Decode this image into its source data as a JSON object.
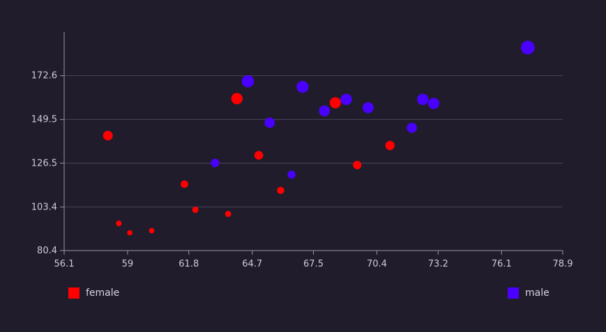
{
  "chart_data": {
    "type": "scatter",
    "title": "",
    "xlabel": "",
    "ylabel": "",
    "xlim": [
      56.1,
      78.9
    ],
    "ylim": [
      80.4,
      195.6
    ],
    "x_ticks": [
      "56.1",
      "59",
      "61.8",
      "64.7",
      "67.5",
      "70.4",
      "73.2",
      "76.1",
      "78.9"
    ],
    "y_ticks": [
      "80.4",
      "103.4",
      "126.5",
      "149.5",
      "172.6"
    ],
    "grid": "horizontal",
    "legend": "bottom",
    "size_encoding": "radius scales with y value",
    "series": [
      {
        "name": "female",
        "color": "#ff0000",
        "points": [
          {
            "x": 58.1,
            "y": 141.0
          },
          {
            "x": 58.6,
            "y": 94.7
          },
          {
            "x": 59.1,
            "y": 89.8
          },
          {
            "x": 60.1,
            "y": 90.9
          },
          {
            "x": 61.6,
            "y": 115.4
          },
          {
            "x": 62.1,
            "y": 101.9
          },
          {
            "x": 63.6,
            "y": 99.7
          },
          {
            "x": 64.0,
            "y": 160.5
          },
          {
            "x": 65.0,
            "y": 130.6
          },
          {
            "x": 66.0,
            "y": 112.1
          },
          {
            "x": 68.5,
            "y": 158.3
          },
          {
            "x": 69.5,
            "y": 125.5
          },
          {
            "x": 71.0,
            "y": 135.8
          }
        ]
      },
      {
        "name": "male",
        "color": "#4a00ff",
        "points": [
          {
            "x": 63.0,
            "y": 126.6
          },
          {
            "x": 64.5,
            "y": 169.6
          },
          {
            "x": 65.5,
            "y": 147.8
          },
          {
            "x": 66.5,
            "y": 120.4
          },
          {
            "x": 67.0,
            "y": 166.7
          },
          {
            "x": 68.0,
            "y": 154.0
          },
          {
            "x": 69.0,
            "y": 160.1
          },
          {
            "x": 70.0,
            "y": 155.7
          },
          {
            "x": 72.0,
            "y": 145.1
          },
          {
            "x": 72.5,
            "y": 160.1
          },
          {
            "x": 73.0,
            "y": 157.9
          },
          {
            "x": 77.3,
            "y": 187.4
          }
        ]
      }
    ]
  }
}
